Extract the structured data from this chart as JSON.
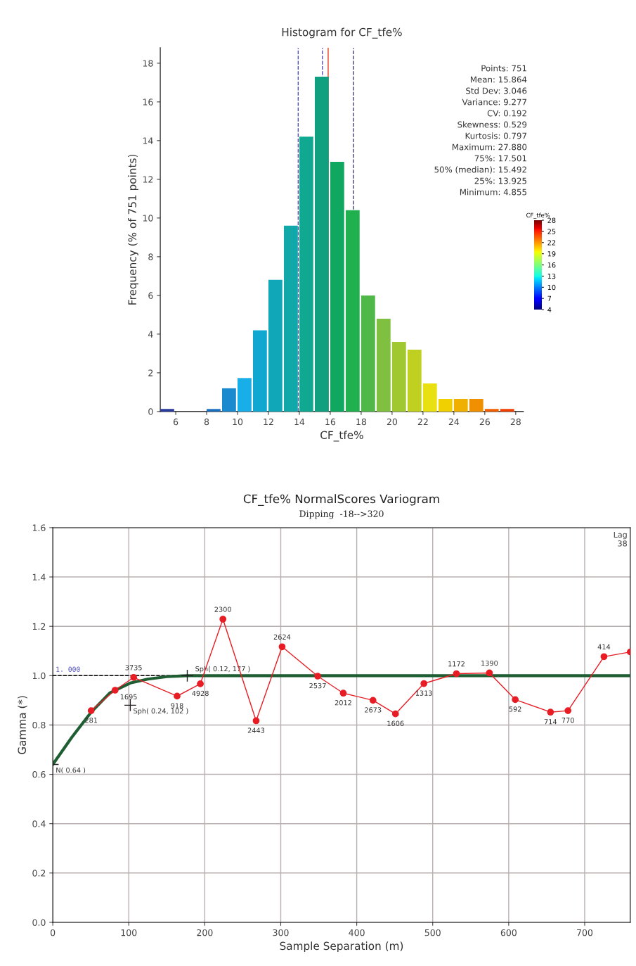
{
  "chart_data": [
    {
      "type": "histogram",
      "title": "Histogram for CF_tfe%",
      "xlabel": "CF_tfe%",
      "ylabel": "Frequency (% of 751 points)",
      "bins": [
        5,
        6,
        7,
        8,
        9,
        10,
        11,
        12,
        13,
        14,
        15,
        16,
        17,
        18,
        19,
        20,
        21,
        22,
        23,
        24,
        25,
        26,
        27,
        28
      ],
      "values": [
        0.13,
        0,
        0,
        0.13,
        1.2,
        1.73,
        4.2,
        6.8,
        9.6,
        14.2,
        17.3,
        12.9,
        10.4,
        6.0,
        4.8,
        3.6,
        3.2,
        1.45,
        0.65,
        0.65,
        0.65,
        0.13,
        0.13
      ],
      "colors": [
        "#2a3a9a",
        "#2050b0",
        "#1a60b8",
        "#1a6ec0",
        "#1a8ad0",
        "#18aee8",
        "#10a8d0",
        "#10a8b8",
        "#10a8a8",
        "#10a890",
        "#10a080",
        "#10a860",
        "#20b050",
        "#50b848",
        "#80c040",
        "#a0c830",
        "#c0d020",
        "#e8e010",
        "#f0d000",
        "#f0b000",
        "#f09000",
        "#f06000",
        "#f04000"
      ],
      "xlim": [
        5,
        28.5
      ],
      "ylim": [
        0,
        18.8
      ],
      "xticks": [
        6,
        8,
        10,
        12,
        14,
        16,
        18,
        20,
        22,
        24,
        26,
        28
      ],
      "yticks": [
        0,
        2,
        4,
        6,
        8,
        10,
        12,
        14,
        16,
        18
      ],
      "ref_lines": [
        {
          "axis": "x",
          "value": 13.925,
          "color": "#5050c0",
          "line_style": "dashed"
        },
        {
          "axis": "x",
          "value": 15.492,
          "color": "#5050c0",
          "line_style": "dashed"
        },
        {
          "axis": "x",
          "value": 15.864,
          "color": "#e04020",
          "line_style": "solid"
        },
        {
          "axis": "x",
          "value": 17.501,
          "color": "#404070",
          "line_style": "dashed"
        }
      ],
      "annotations": [
        "Points: 751",
        "Mean: 15.864",
        "Std Dev: 3.046",
        "Variance: 9.277",
        "CV: 0.192",
        "Skewness: 0.529",
        "Kurtosis: 0.797",
        "Maximum: 27.880",
        "75%: 17.501",
        "50% (median): 15.492",
        "25%: 13.925",
        "Minimum: 4.855"
      ],
      "clabel": "CF_tfe%",
      "clim": [
        4,
        28
      ],
      "cticks": [
        4,
        7,
        10,
        13,
        16,
        19,
        22,
        25,
        28
      ],
      "grid": false,
      "legend": false
    },
    {
      "type": "line",
      "title": "CF_tfe% NormalScores Variogram",
      "subtitle": "Dipping  -18-->320",
      "xlabel": "Sample Separation (m)",
      "ylabel": "Gamma (*)",
      "xlim": [
        0,
        760
      ],
      "ylim": [
        0,
        1.6
      ],
      "xticks": [
        0,
        100,
        200,
        300,
        400,
        500,
        600,
        700
      ],
      "yticks": [
        {
          "value": 0,
          "label": "0.0"
        },
        {
          "value": 0.2,
          "label": "0.2"
        },
        {
          "value": 0.4,
          "label": "0.4"
        },
        {
          "value": 0.6,
          "label": "0.6"
        },
        {
          "value": 0.8,
          "label": "0.8"
        },
        {
          "value": 1.0,
          "label": "1.0"
        },
        {
          "value": 1.2,
          "label": "1.2"
        },
        {
          "value": 1.4,
          "label": "1.4"
        },
        {
          "value": 1.6,
          "label": "1.6"
        }
      ],
      "series": [
        {
          "type": "line",
          "color": "#1e5e32",
          "marker": "none",
          "x": [
            0,
            25,
            50,
            75,
            102,
            125,
            150,
            177,
            760
          ],
          "values": [
            0.64,
            0.75,
            0.85,
            0.93,
            0.97,
            0.986,
            0.996,
            1.0,
            1.0
          ]
        },
        {
          "type": "line",
          "color": "#e81c24",
          "marker": "circle",
          "x": [
            50.5,
            82,
            106.4,
            163.6,
            194.2,
            223.9,
            267.6,
            301.8,
            348.6,
            382.3,
            421.4,
            451,
            488.4,
            531.2,
            574.6,
            608.6,
            655,
            678,
            725.4,
            760
          ],
          "values": [
            0.858,
            0.941,
            0.993,
            0.917,
            0.967,
            1.229,
            0.817,
            1.117,
            0.998,
            0.929,
            0.9,
            0.845,
            0.968,
            1.008,
            1.011,
            0.903,
            0.852,
            0.858,
            1.077,
            1.096
          ]
        }
      ],
      "ref_lines": [
        {
          "axis": "y",
          "value": 1.0,
          "label": "1. 000",
          "color": "#000000",
          "line_style": "dashed"
        }
      ],
      "annotations": [
        {
          "text": "N( 0.64 )",
          "x": 0,
          "y": 0.64
        },
        {
          "text": "Sph( 0.24, 102 )",
          "x": 102,
          "y": 0.88
        },
        {
          "text": "Sph( 0.12, 177 )",
          "x": 177,
          "y": 1.0
        },
        "Lag\n38",
        {
          "text": "281",
          "x": 50.5,
          "y": 0.858
        },
        {
          "text": "1695",
          "x": 82,
          "y": 0.941
        },
        {
          "text": "3735",
          "x": 106.4,
          "y": 0.993
        },
        {
          "text": "918",
          "x": 163.6,
          "y": 0.917
        },
        {
          "text": "4928",
          "x": 194.2,
          "y": 0.967
        },
        {
          "text": "2300",
          "x": 223.9,
          "y": 1.229
        },
        {
          "text": "2443",
          "x": 267.6,
          "y": 0.817
        },
        {
          "text": "2624",
          "x": 301.8,
          "y": 1.117
        },
        {
          "text": "2537",
          "x": 348.6,
          "y": 0.998
        },
        {
          "text": "2012",
          "x": 382.3,
          "y": 0.929
        },
        {
          "text": "2673",
          "x": 421.4,
          "y": 0.9
        },
        {
          "text": "1606",
          "x": 451,
          "y": 0.845
        },
        {
          "text": "1313",
          "x": 488.4,
          "y": 0.968
        },
        {
          "text": "1172",
          "x": 531.2,
          "y": 1.008
        },
        {
          "text": "1390",
          "x": 574.6,
          "y": 1.011
        },
        {
          "text": "592",
          "x": 608.6,
          "y": 0.903
        },
        {
          "text": "714",
          "x": 655,
          "y": 0.852
        },
        {
          "text": "770",
          "x": 678,
          "y": 0.858
        },
        {
          "text": "414",
          "x": 725.4,
          "y": 1.077
        }
      ],
      "grid": true,
      "legend": false
    }
  ]
}
